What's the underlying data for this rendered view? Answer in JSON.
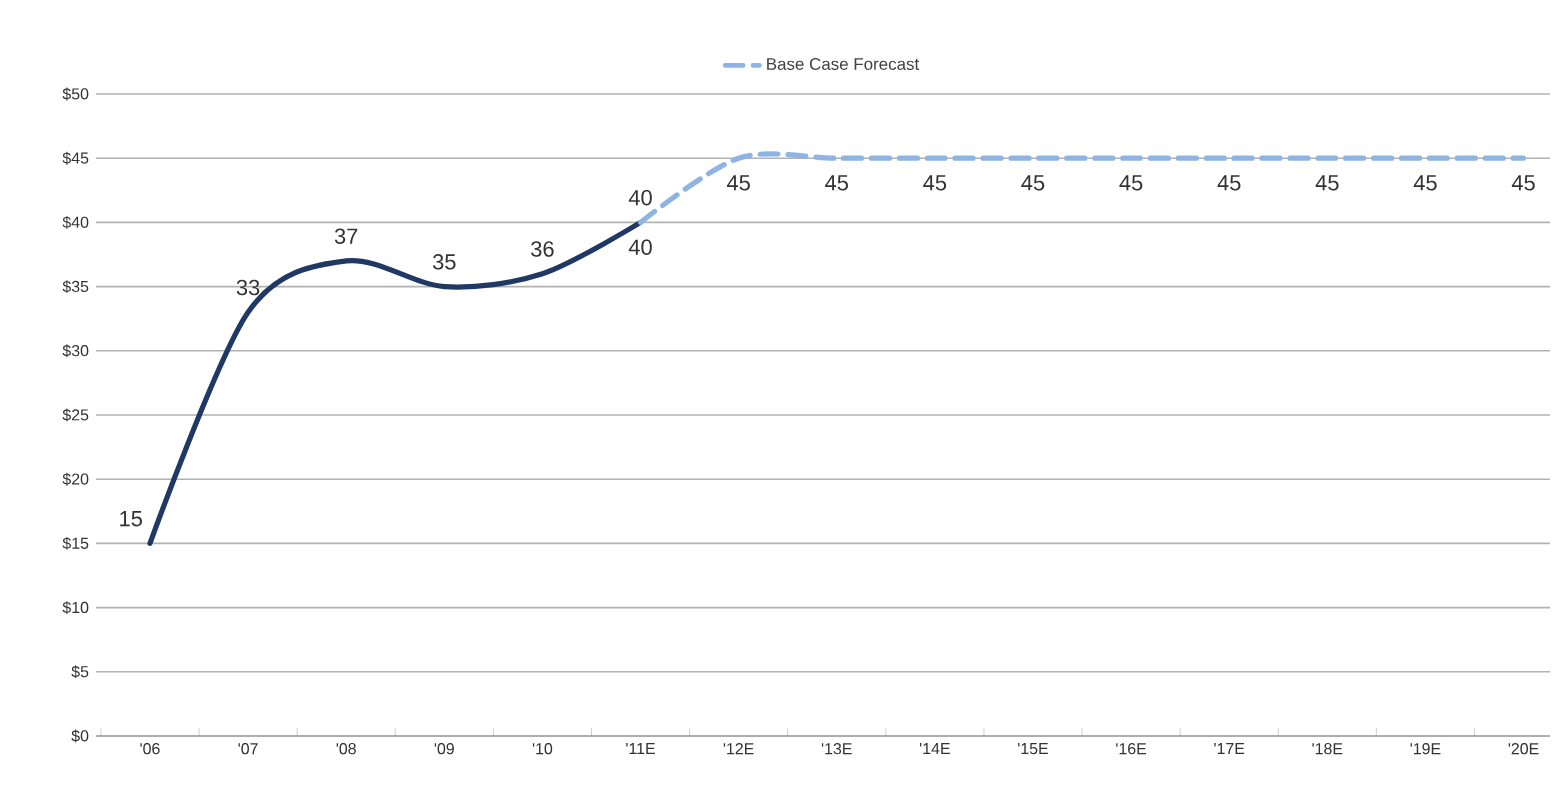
{
  "chart_data": {
    "type": "line",
    "categories": [
      "'06",
      "'07",
      "'08",
      "'09",
      "'10",
      "'11E",
      "'12E",
      "'13E",
      "'14E",
      "'15E",
      "'16E",
      "'17E",
      "'18E",
      "'19E",
      "'20E"
    ],
    "series": [
      {
        "color": "#1f3864",
        "line_style": "solid",
        "values": [
          15,
          33,
          37,
          35,
          36,
          40,
          null,
          null,
          null,
          null,
          null,
          null,
          null,
          null,
          null
        ]
      },
      {
        "name": "Base Case Forecast",
        "color": "#8eb4e3",
        "line_style": "dashed",
        "values": [
          null,
          null,
          null,
          null,
          null,
          40,
          45,
          45,
          45,
          45,
          45,
          45,
          45,
          45,
          45
        ]
      }
    ],
    "ylim": [
      0,
      50
    ],
    "yticks": [
      {
        "value": 0,
        "label": "$0"
      },
      {
        "value": 5,
        "label": "$5"
      },
      {
        "value": 10,
        "label": "$10"
      },
      {
        "value": 15,
        "label": "$15"
      },
      {
        "value": 20,
        "label": "$20"
      },
      {
        "value": 25,
        "label": "$25"
      },
      {
        "value": 30,
        "label": "$30"
      },
      {
        "value": 35,
        "label": "$35"
      },
      {
        "value": 40,
        "label": "$40"
      },
      {
        "value": 45,
        "label": "$45"
      },
      {
        "value": 50,
        "label": "$50"
      }
    ],
    "grid": "y",
    "legend": "top",
    "marker": "none",
    "data_labels": true
  }
}
